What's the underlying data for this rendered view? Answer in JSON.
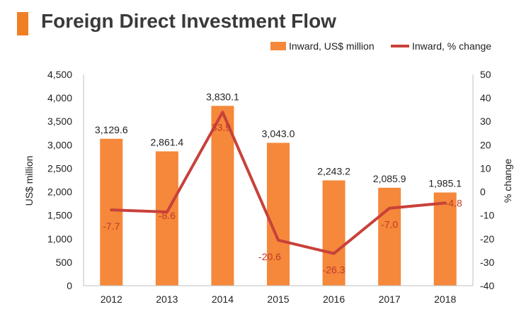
{
  "chart_data": {
    "type": "bar+line",
    "title": "Foreign Direct Investment Flow",
    "categories": [
      "2012",
      "2013",
      "2014",
      "2015",
      "2016",
      "2017",
      "2018"
    ],
    "series": [
      {
        "name": "Inward, US$ million",
        "type": "bar",
        "axis": "left",
        "values": [
          3129.6,
          2861.4,
          3830.1,
          3043.0,
          2243.2,
          2085.9,
          1985.1
        ],
        "labels": [
          "3,129.6",
          "2,861.4",
          "3,830.1",
          "3,043.0",
          "2,243.2",
          "2,085.9",
          "1,985.1"
        ]
      },
      {
        "name": "Inward, % change",
        "type": "line",
        "axis": "right",
        "values": [
          -7.7,
          -8.6,
          33.9,
          -20.6,
          -26.3,
          -7.0,
          -4.8
        ],
        "labels": [
          "-7.7",
          "-8.6",
          "33.9",
          "-20.6",
          "-26.3",
          "-7.0",
          "-4.8"
        ]
      }
    ],
    "ylabel": "US$ million",
    "y2label": "% change",
    "ylim": [
      0,
      4500
    ],
    "y2lim": [
      -40,
      50
    ],
    "yticks": [
      "0",
      "500",
      "1,000",
      "1,500",
      "2,000",
      "2,500",
      "3,000",
      "3,500",
      "4,000",
      "4,500"
    ],
    "y2ticks": [
      "-40",
      "-30",
      "-20",
      "-10",
      "0",
      "10",
      "20",
      "30",
      "40",
      "50"
    ],
    "legend_position": "top-right",
    "grid": false
  },
  "colors": {
    "bar": "#F5883A",
    "line": "#C8413A",
    "accent": "#F07F24",
    "axis": "#BFBFBF"
  }
}
